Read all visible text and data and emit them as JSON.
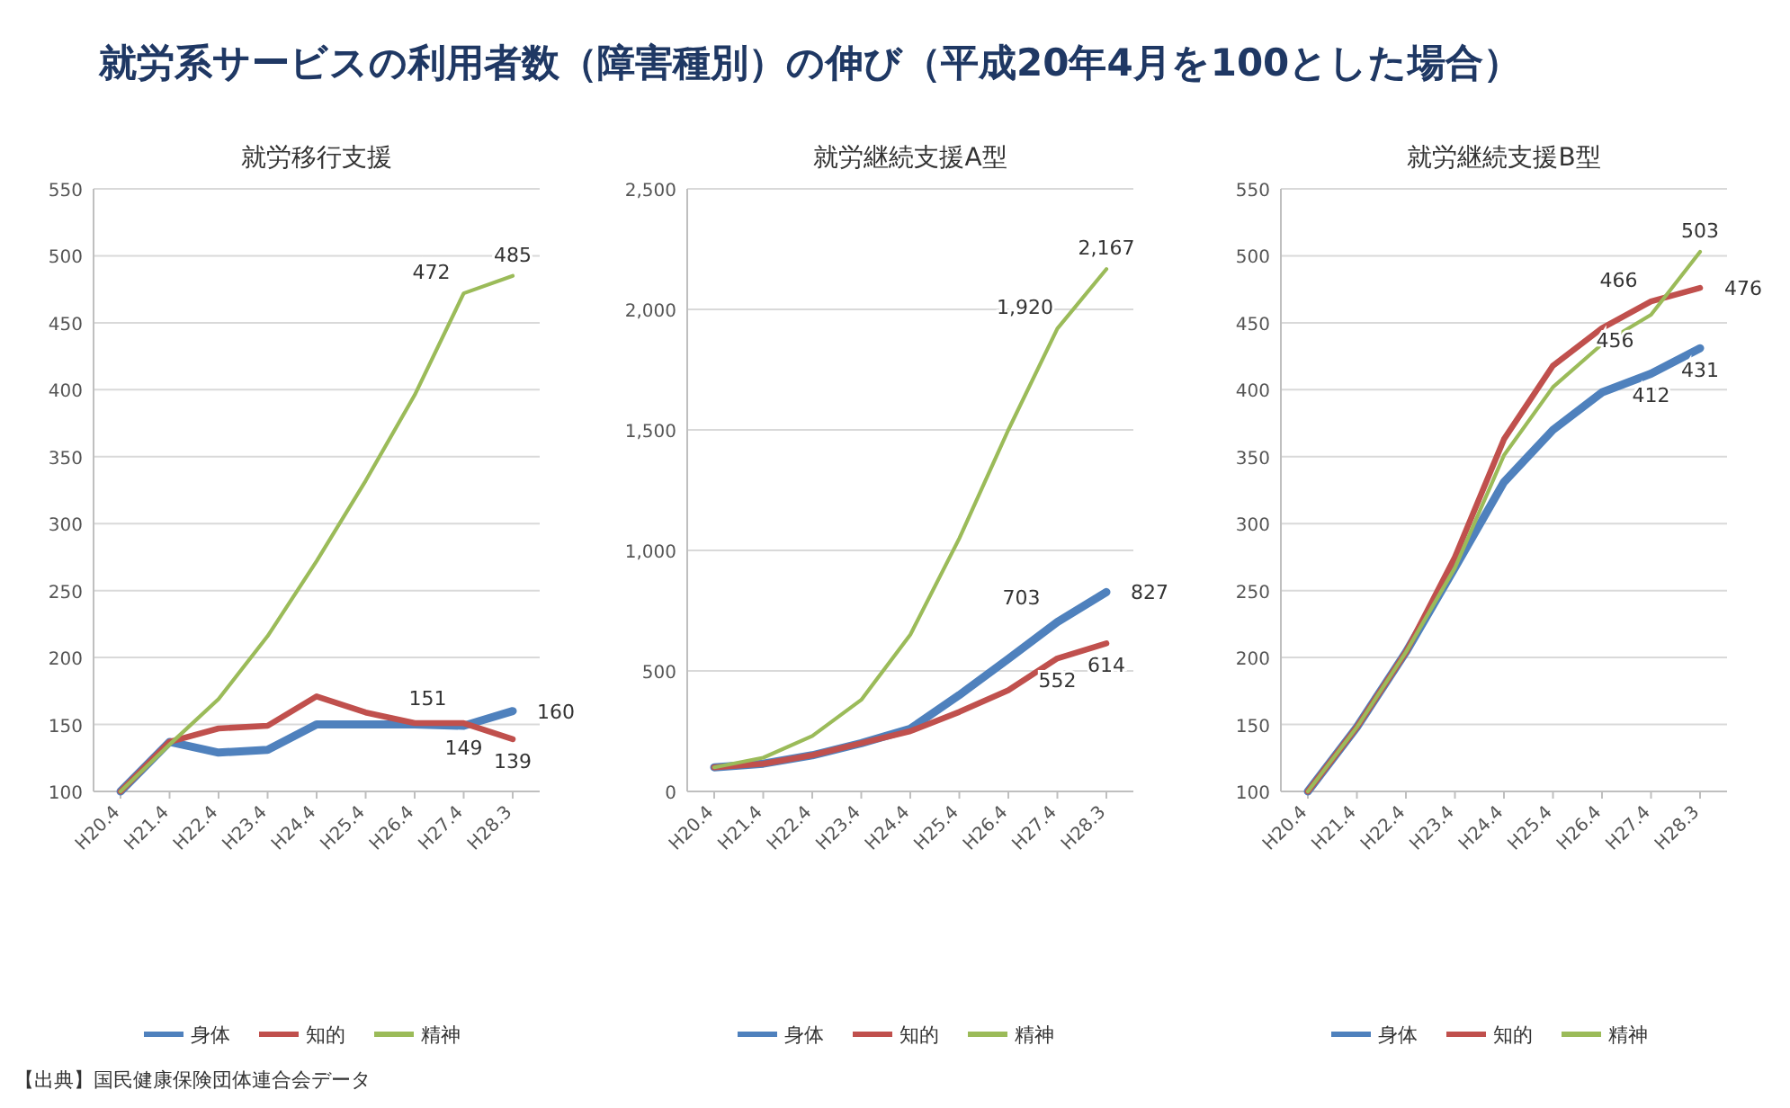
{
  "chart_data": [
    {
      "type": "line",
      "title": "就労移行支援",
      "annotations": [
        "就労系サービスの利用者数（障害種別）の伸び（平成20年4月を100とした場合）",
        "【出典】国民健康保険団体連合会データ"
      ],
      "categories": [
        "H20.4",
        "H21.4",
        "H22.4",
        "H23.4",
        "H24.4",
        "H25.4",
        "H26.4",
        "H27.4",
        "H28.3"
      ],
      "ylim": [
        100,
        550
      ],
      "yticks": [
        100,
        150,
        200,
        250,
        300,
        350,
        400,
        450,
        500,
        550
      ],
      "grid": "y",
      "legend": "bottom",
      "marker": "none",
      "line_style": "solid",
      "series": [
        {
          "name": "身体",
          "color": "#4f81bd",
          "values": [
            100,
            137,
            129,
            131,
            150,
            150,
            150,
            149,
            160
          ],
          "value_labels": [
            null,
            null,
            null,
            null,
            null,
            null,
            null,
            "149",
            "160"
          ]
        },
        {
          "name": "知的",
          "color": "#c0504d",
          "values": [
            100,
            137,
            147,
            149,
            171,
            159,
            151,
            151,
            139
          ],
          "value_labels": [
            null,
            null,
            null,
            null,
            null,
            null,
            null,
            "151",
            "139"
          ]
        },
        {
          "name": "精神",
          "color": "#9bbb59",
          "values": [
            100,
            135,
            169,
            216,
            272,
            332,
            396,
            472,
            485
          ],
          "value_labels": [
            null,
            null,
            null,
            null,
            null,
            null,
            null,
            "472",
            "485"
          ]
        }
      ]
    },
    {
      "type": "line",
      "title": "就労継続支援A型",
      "categories": [
        "H20.4",
        "H21.4",
        "H22.4",
        "H23.4",
        "H24.4",
        "H25.4",
        "H26.4",
        "H27.4",
        "H28.3"
      ],
      "ylim": [
        0,
        2500
      ],
      "yticks": [
        0,
        500,
        {
          "value": 1000,
          "label": "1,000"
        },
        {
          "value": 1500,
          "label": "1,500"
        },
        {
          "value": 2000,
          "label": "2,000"
        },
        {
          "value": 2500,
          "label": "2,500"
        }
      ],
      "grid": "y",
      "legend": "bottom",
      "marker": "none",
      "line_style": "solid",
      "series": [
        {
          "name": "身体",
          "color": "#4f81bd",
          "values": [
            100,
            115,
            150,
            200,
            260,
            400,
            550,
            703,
            827
          ],
          "value_labels": [
            null,
            null,
            null,
            null,
            null,
            null,
            null,
            "703",
            "827"
          ]
        },
        {
          "name": "知的",
          "color": "#c0504d",
          "values": [
            100,
            115,
            150,
            200,
            250,
            330,
            420,
            552,
            614
          ],
          "value_labels": [
            null,
            null,
            null,
            null,
            null,
            null,
            null,
            "552",
            "614"
          ]
        },
        {
          "name": "精神",
          "color": "#9bbb59",
          "values": [
            100,
            140,
            230,
            380,
            650,
            1050,
            1500,
            1920,
            2167
          ],
          "value_labels": [
            null,
            null,
            null,
            null,
            null,
            null,
            null,
            "1,920",
            "2,167"
          ]
        }
      ]
    },
    {
      "type": "line",
      "title": "就労継続支援B型",
      "categories": [
        "H20.4",
        "H21.4",
        "H22.4",
        "H23.4",
        "H24.4",
        "H25.4",
        "H26.4",
        "H27.4",
        "H28.3"
      ],
      "ylim": [
        100,
        550
      ],
      "yticks": [
        100,
        150,
        200,
        250,
        300,
        350,
        400,
        450,
        500,
        550
      ],
      "grid": "y",
      "legend": "bottom",
      "marker": "none",
      "line_style": "solid",
      "series": [
        {
          "name": "身体",
          "color": "#4f81bd",
          "values": [
            100,
            148,
            204,
            267,
            331,
            370,
            398,
            412,
            431
          ],
          "value_labels": [
            null,
            null,
            null,
            null,
            null,
            null,
            null,
            "412",
            "431"
          ]
        },
        {
          "name": "知的",
          "color": "#c0504d",
          "values": [
            100,
            148,
            204,
            275,
            363,
            418,
            446,
            466,
            476
          ],
          "value_labels": [
            null,
            null,
            null,
            null,
            null,
            null,
            null,
            "466",
            "476"
          ]
        },
        {
          "name": "精神",
          "color": "#9bbb59",
          "values": [
            100,
            148,
            204,
            267,
            351,
            402,
            434,
            456,
            503
          ],
          "value_labels": [
            null,
            null,
            null,
            null,
            null,
            null,
            null,
            "456",
            "503"
          ]
        }
      ]
    }
  ]
}
